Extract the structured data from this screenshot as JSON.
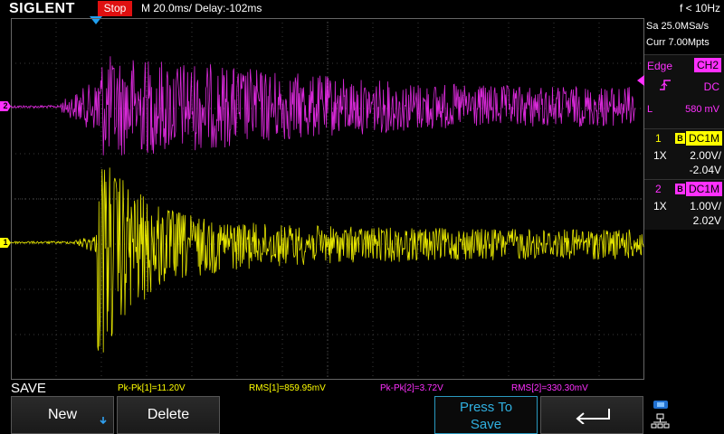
{
  "header": {
    "logo": "SIGLENT",
    "run_state": "Stop",
    "timebase": "M 20.0ms/ Delay:-102ms",
    "trigger_freq": "f < 10Hz"
  },
  "acquisition": {
    "sample_rate": "Sa 25.0MSa/s",
    "memory_depth": "Curr 7.00Mpts"
  },
  "trigger": {
    "type": "Edge",
    "source": "CH2",
    "coupling": "DC",
    "level_label": "L",
    "level": "580 mV"
  },
  "channels": [
    {
      "number": "1",
      "bandwidth_icon": "B",
      "coupling": "DC1M",
      "probe": "1X",
      "scale": "2.00V/",
      "offset": "-2.04V",
      "color": "#ffff00",
      "marker": "1"
    },
    {
      "number": "2",
      "bandwidth_icon": "B",
      "coupling": "DC1M",
      "probe": "1X",
      "scale": "1.00V/",
      "offset": "2.02V",
      "color": "#ff30ff",
      "marker": "2"
    }
  ],
  "measurements": [
    {
      "label": "Pk-Pk[1]=11.20V"
    },
    {
      "label": "RMS[1]=859.95mV"
    },
    {
      "label": "Pk-Pk[2]=3.72V"
    },
    {
      "label": "RMS[2]=330.30mV"
    }
  ],
  "menu": {
    "title": "SAVE",
    "new_label": "New",
    "delete_label": "Delete",
    "press_to_save_line1": "Press To",
    "press_to_save_line2": "Save"
  },
  "icons": {
    "back": "back-arrow-icon",
    "slope": "rising-edge-icon",
    "usb": "usb-icon",
    "network": "network-icon",
    "down_arrow": "down-arrow-icon"
  }
}
